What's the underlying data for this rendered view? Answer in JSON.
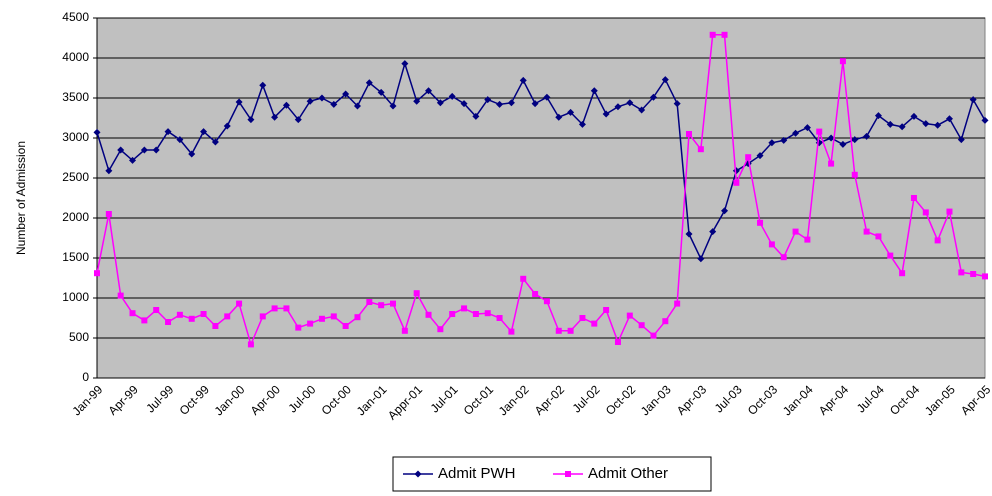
{
  "chart_data": {
    "type": "line",
    "y_label": "Number of Admission",
    "categories": [
      "Jan-99",
      null,
      null,
      "Apr-99",
      null,
      null,
      "Jul-99",
      null,
      null,
      "Oct-99",
      null,
      null,
      "Jan-00",
      null,
      null,
      "Apr-00",
      null,
      null,
      "Jul-00",
      null,
      null,
      "Oct-00",
      null,
      null,
      "Jan-01",
      null,
      null,
      "Appr-01",
      null,
      null,
      "Jul-01",
      null,
      null,
      "Oct-01",
      null,
      null,
      "Jan-02",
      null,
      null,
      "Apr-02",
      null,
      null,
      "Jul-02",
      null,
      null,
      "Oct-02",
      null,
      null,
      "Jan-03",
      null,
      null,
      "Apr-03",
      null,
      null,
      "Jul-03",
      null,
      null,
      "Oct-03",
      null,
      null,
      "Jan-04",
      null,
      null,
      "Apr-04",
      null,
      null,
      "Jul-04",
      null,
      null,
      "Oct-04",
      null,
      null,
      "Jan-05",
      null,
      null,
      "Apr-05"
    ],
    "series": [
      {
        "name": "Admit PWH",
        "color": "#000080",
        "marker": "diamond",
        "values": [
          3070,
          2590,
          2850,
          2720,
          2850,
          2850,
          3080,
          2980,
          2800,
          3080,
          2950,
          3150,
          3450,
          3230,
          3660,
          3260,
          3410,
          3230,
          3460,
          3500,
          3420,
          3550,
          3400,
          3690,
          3570,
          3400,
          3930,
          3460,
          3590,
          3440,
          3520,
          3430,
          3270,
          3480,
          3420,
          3440,
          3720,
          3430,
          3510,
          3260,
          3320,
          3170,
          3590,
          3300,
          3390,
          3440,
          3350,
          3510,
          3730,
          3430,
          1800,
          1490,
          1830,
          2090,
          2590,
          2680,
          2780,
          2940,
          2970,
          3060,
          3130,
          2940,
          3000,
          2920,
          2980,
          3020,
          3280,
          3170,
          3140,
          3270,
          3180,
          3160,
          3240,
          2980,
          3480,
          3220
        ]
      },
      {
        "name": "Admit Other",
        "color": "#ff00ff",
        "marker": "square",
        "values": [
          1310,
          2050,
          1030,
          810,
          720,
          850,
          700,
          790,
          740,
          800,
          650,
          770,
          930,
          420,
          770,
          870,
          870,
          630,
          680,
          740,
          770,
          650,
          760,
          950,
          910,
          930,
          590,
          1060,
          790,
          610,
          800,
          870,
          800,
          810,
          750,
          580,
          1240,
          1050,
          960,
          590,
          590,
          750,
          680,
          850,
          450,
          780,
          660,
          530,
          710,
          930,
          3050,
          2860,
          4290,
          4290,
          2440,
          2760,
          1940,
          1670,
          1510,
          1830,
          1730,
          3080,
          2680,
          3960,
          2540,
          1830,
          1770,
          1530,
          1310,
          2250,
          2070,
          1720,
          2080,
          1320,
          1300,
          1270
        ]
      }
    ],
    "ylim": [
      0,
      4500
    ],
    "yticks": [
      0,
      500,
      1000,
      1500,
      2000,
      2500,
      3000,
      3500,
      4000,
      4500
    ],
    "grid": true,
    "background": "#c0c0c0",
    "legend": "bottom"
  }
}
